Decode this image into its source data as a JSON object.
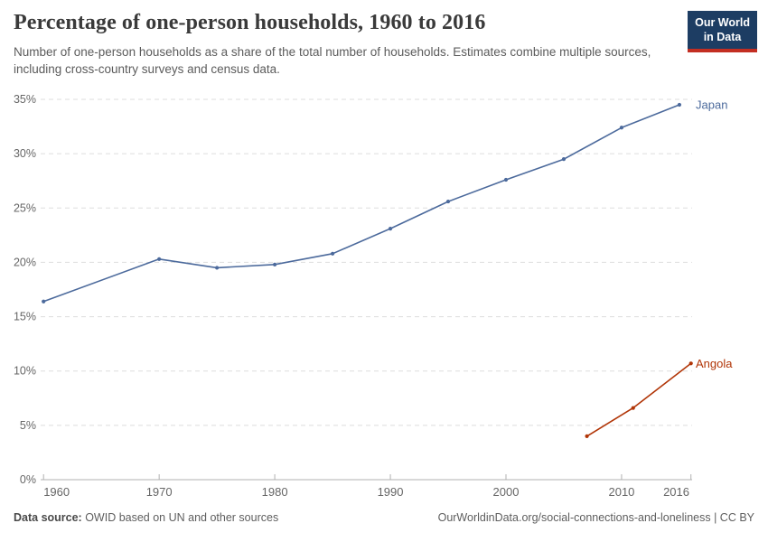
{
  "header": {
    "logo": {
      "line1": "Our World",
      "line2": "in Data",
      "bg_color": "#1D3D63",
      "bar_color": "#C32E22"
    }
  },
  "chart_data": {
    "type": "line",
    "title": "Percentage of one-person households, 1960 to 2016",
    "subtitle": "Number of one-person households as a share of the total number of households. Estimates combine multiple sources, including cross-country surveys and census data.",
    "xlabel": "",
    "ylabel": "",
    "x_domain": [
      1959.75,
      2016.1
    ],
    "y_domain": [
      0,
      35
    ],
    "x_ticks": [
      1960,
      1970,
      1980,
      1990,
      2000,
      2010,
      2016
    ],
    "x_tick_labels": [
      "1960",
      "1970",
      "1980",
      "1990",
      "2000",
      "2010",
      "2016"
    ],
    "y_ticks": [
      0,
      5,
      10,
      15,
      20,
      25,
      30,
      35
    ],
    "y_tick_suffix": "%",
    "grid": "horizontal-dashed",
    "legend_position": "end-of-line-labels",
    "series": [
      {
        "name": "Japan",
        "color": "#4C6A9C",
        "points": [
          {
            "x": 1960,
            "y": 16.4
          },
          {
            "x": 1970,
            "y": 20.3
          },
          {
            "x": 1975,
            "y": 19.5
          },
          {
            "x": 1980,
            "y": 19.8
          },
          {
            "x": 1985,
            "y": 20.8
          },
          {
            "x": 1990,
            "y": 23.1
          },
          {
            "x": 1995,
            "y": 25.6
          },
          {
            "x": 2000,
            "y": 27.6
          },
          {
            "x": 2005,
            "y": 29.5
          },
          {
            "x": 2010,
            "y": 32.4
          },
          {
            "x": 2015,
            "y": 34.5
          }
        ]
      },
      {
        "name": "Angola",
        "color": "#B13507",
        "points": [
          {
            "x": 2007,
            "y": 4.0
          },
          {
            "x": 2011,
            "y": 6.6
          },
          {
            "x": 2016,
            "y": 10.7
          }
        ]
      }
    ],
    "axis_colors": {
      "grid": "#DDDDDD",
      "axis_line": "#B0B0B0",
      "tick_text": "#666666"
    }
  },
  "footer": {
    "source_label": "Data source:",
    "source_text": " OWID based on UN and other sources",
    "link_text": "OurWorldinData.org/social-connections-and-loneliness | CC BY"
  }
}
